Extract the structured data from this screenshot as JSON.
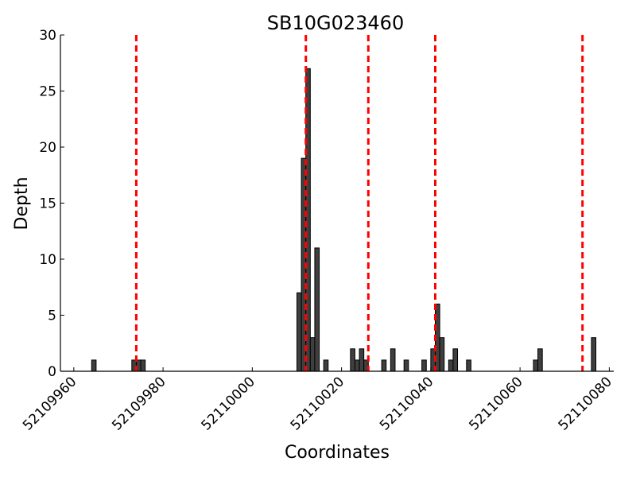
{
  "chart_data": {
    "type": "bar",
    "title": "SB10G023460",
    "xlabel": "Coordinates",
    "ylabel": "Depth",
    "xlim": [
      52109957,
      52110081
    ],
    "ylim": [
      0,
      30
    ],
    "x_ticks": [
      52109960,
      52109980,
      52110000,
      52110020,
      52110040,
      52110060,
      52110080
    ],
    "y_ticks": [
      0,
      5,
      10,
      15,
      20,
      25,
      30
    ],
    "bin_width": 1,
    "bars": [
      {
        "x": 52109964,
        "value": 1
      },
      {
        "x": 52109973,
        "value": 1
      },
      {
        "x": 52109974,
        "value": 1
      },
      {
        "x": 52109975,
        "value": 1
      },
      {
        "x": 52110010,
        "value": 7
      },
      {
        "x": 52110011,
        "value": 19
      },
      {
        "x": 52110012,
        "value": 27
      },
      {
        "x": 52110013,
        "value": 3
      },
      {
        "x": 52110014,
        "value": 11
      },
      {
        "x": 52110016,
        "value": 1
      },
      {
        "x": 52110022,
        "value": 2
      },
      {
        "x": 52110023,
        "value": 1
      },
      {
        "x": 52110024,
        "value": 2
      },
      {
        "x": 52110025,
        "value": 1
      },
      {
        "x": 52110029,
        "value": 1
      },
      {
        "x": 52110031,
        "value": 2
      },
      {
        "x": 52110034,
        "value": 1
      },
      {
        "x": 52110038,
        "value": 1
      },
      {
        "x": 52110040,
        "value": 2
      },
      {
        "x": 52110041,
        "value": 6
      },
      {
        "x": 52110042,
        "value": 3
      },
      {
        "x": 52110044,
        "value": 1
      },
      {
        "x": 52110045,
        "value": 2
      },
      {
        "x": 52110048,
        "value": 1
      },
      {
        "x": 52110063,
        "value": 1
      },
      {
        "x": 52110064,
        "value": 2
      },
      {
        "x": 52110076,
        "value": 3
      }
    ],
    "vertical_lines": [
      52109974,
      52110012,
      52110026,
      52110041,
      52110074
    ],
    "grid": false,
    "colors": {
      "bar_fill": "#3f3f3f",
      "bar_edge": "#000000",
      "vline": "#ff0000"
    }
  }
}
